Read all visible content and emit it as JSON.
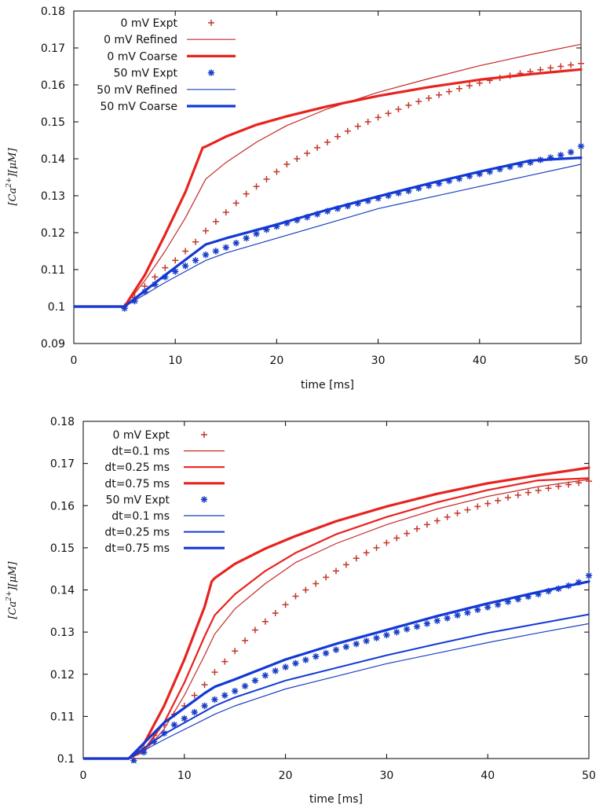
{
  "chart_data": [
    {
      "type": "line",
      "title": "",
      "xlabel": "time [ms]",
      "ylabel": "[Ca2+][μM]",
      "ylabel_main": "[Ca",
      "ylabel_sup": "2+",
      "ylabel_tail": "][μM]",
      "xlim": [
        0,
        50
      ],
      "ylim": [
        0.09,
        0.18
      ],
      "xticks": [
        "0",
        "10",
        "20",
        "30",
        "40",
        "50"
      ],
      "yticks": [
        "0.09",
        "0.1",
        "0.11",
        "0.12",
        "0.13",
        "0.14",
        "0.15",
        "0.16",
        "0.17",
        "0.18"
      ],
      "legend_position": "top-left",
      "series": [
        {
          "name": "0 mV Expt",
          "style": "plus",
          "color": "#c0392b",
          "x": [
            5,
            6,
            7,
            8,
            9,
            10,
            11,
            12,
            13,
            14,
            15,
            16,
            17,
            18,
            19,
            20,
            21,
            22,
            23,
            24,
            25,
            26,
            27,
            28,
            29,
            30,
            31,
            32,
            33,
            34,
            35,
            36,
            37,
            38,
            39,
            40,
            41,
            42,
            43,
            44,
            45,
            46,
            47,
            48,
            49,
            50
          ],
          "y": [
            0.1,
            0.1025,
            0.1055,
            0.108,
            0.1105,
            0.1125,
            0.115,
            0.1175,
            0.1205,
            0.123,
            0.1255,
            0.128,
            0.1305,
            0.1325,
            0.1345,
            0.1365,
            0.1385,
            0.14,
            0.1415,
            0.143,
            0.1445,
            0.146,
            0.1475,
            0.1488,
            0.15,
            0.1512,
            0.1523,
            0.1534,
            0.1545,
            0.1555,
            0.1564,
            0.1573,
            0.1582,
            0.159,
            0.1598,
            0.1605,
            0.1612,
            0.1619,
            0.1625,
            0.1631,
            0.1636,
            0.1641,
            0.1646,
            0.165,
            0.1654,
            0.1658
          ]
        },
        {
          "name": "0 mV Refined",
          "style": "line",
          "color": "#c62828",
          "width": 1.2,
          "x": [
            0,
            5,
            7,
            9,
            11,
            13,
            15,
            18,
            21,
            25,
            30,
            35,
            40,
            45,
            50
          ],
          "y": [
            0.1,
            0.1,
            0.107,
            0.115,
            0.124,
            0.1345,
            0.139,
            0.1445,
            0.149,
            0.1535,
            0.158,
            0.1617,
            0.1652,
            0.1682,
            0.171
          ]
        },
        {
          "name": "0 mV Coarse",
          "style": "line",
          "color": "#e8231e",
          "width": 3.2,
          "x": [
            0,
            5,
            7,
            9,
            11,
            12.7,
            13,
            15,
            18,
            21,
            25,
            30,
            35,
            40,
            45,
            50
          ],
          "y": [
            0.1,
            0.1,
            0.1085,
            0.1195,
            0.131,
            0.143,
            0.1433,
            0.146,
            0.1492,
            0.1515,
            0.1542,
            0.157,
            0.1594,
            0.1614,
            0.1629,
            0.1642
          ]
        },
        {
          "name": "50 mV Expt",
          "style": "star",
          "color": "#1a3fc4",
          "x": [
            5,
            6,
            7,
            8,
            9,
            10,
            11,
            12,
            13,
            14,
            15,
            16,
            17,
            18,
            19,
            20,
            21,
            22,
            23,
            24,
            25,
            26,
            27,
            28,
            29,
            30,
            31,
            32,
            33,
            34,
            35,
            36,
            37,
            38,
            39,
            40,
            41,
            42,
            43,
            44,
            45,
            46,
            47,
            48,
            49,
            50
          ],
          "y": [
            0.0995,
            0.1015,
            0.104,
            0.106,
            0.108,
            0.1095,
            0.111,
            0.1125,
            0.114,
            0.115,
            0.116,
            0.1172,
            0.1185,
            0.1197,
            0.1208,
            0.1217,
            0.1226,
            0.1234,
            0.1242,
            0.125,
            0.1258,
            0.1265,
            0.1272,
            0.1279,
            0.1286,
            0.1293,
            0.13,
            0.1307,
            0.1313,
            0.132,
            0.1327,
            0.1333,
            0.134,
            0.1346,
            0.1353,
            0.1359,
            0.1365,
            0.1372,
            0.1378,
            0.1384,
            0.139,
            0.1397,
            0.1403,
            0.141,
            0.1418,
            0.1434
          ]
        },
        {
          "name": "50 mV Refined",
          "style": "line",
          "color": "#1a3fc4",
          "width": 1.2,
          "x": [
            0,
            5,
            9,
            13,
            15,
            20,
            25,
            30,
            35,
            40,
            45,
            50
          ],
          "y": [
            0.1,
            0.1,
            0.1065,
            0.1125,
            0.1145,
            0.1185,
            0.1225,
            0.1265,
            0.1295,
            0.1325,
            0.1355,
            0.1385
          ]
        },
        {
          "name": "50 mV Coarse",
          "style": "line",
          "color": "#1239d6",
          "width": 3.2,
          "x": [
            0,
            5,
            9,
            13,
            15,
            20,
            25,
            30,
            35,
            40,
            45,
            50
          ],
          "y": [
            0.1,
            0.1,
            0.1085,
            0.1168,
            0.1185,
            0.1222,
            0.1262,
            0.1298,
            0.1333,
            0.1365,
            0.1395,
            0.1403
          ]
        }
      ]
    },
    {
      "type": "line",
      "title": "",
      "xlabel": "time [ms]",
      "ylabel": "[Ca2+][μM]",
      "ylabel_main": "[Ca",
      "ylabel_sup": "2+",
      "ylabel_tail": "][μM]",
      "xlim": [
        0,
        50
      ],
      "ylim": [
        0.1,
        0.18
      ],
      "xticks": [
        "0",
        "10",
        "20",
        "30",
        "40",
        "50"
      ],
      "yticks": [
        "0.1",
        "0.11",
        "0.12",
        "0.13",
        "0.14",
        "0.15",
        "0.16",
        "0.17",
        "0.18"
      ],
      "legend_position": "top-left",
      "series": [
        {
          "name": "0 mV Expt",
          "style": "plus",
          "color": "#c0392b",
          "x": [
            5,
            6,
            7,
            8,
            9,
            10,
            11,
            12,
            13,
            14,
            15,
            16,
            17,
            18,
            19,
            20,
            21,
            22,
            23,
            24,
            25,
            26,
            27,
            28,
            29,
            30,
            31,
            32,
            33,
            34,
            35,
            36,
            37,
            38,
            39,
            40,
            41,
            42,
            43,
            44,
            45,
            46,
            47,
            48,
            49,
            50
          ],
          "y": [
            0.1,
            0.1025,
            0.1055,
            0.108,
            0.1105,
            0.1125,
            0.115,
            0.1175,
            0.1205,
            0.123,
            0.1255,
            0.128,
            0.1305,
            0.1325,
            0.1345,
            0.1365,
            0.1385,
            0.14,
            0.1415,
            0.143,
            0.1445,
            0.146,
            0.1475,
            0.1488,
            0.15,
            0.1512,
            0.1523,
            0.1534,
            0.1545,
            0.1555,
            0.1564,
            0.1573,
            0.1582,
            0.159,
            0.1598,
            0.1605,
            0.1612,
            0.1619,
            0.1625,
            0.1631,
            0.1636,
            0.1641,
            0.1646,
            0.165,
            0.1654,
            0.1658
          ]
        },
        {
          "name": "dt=0.1 ms",
          "style": "line",
          "color": "#c62828",
          "width": 1.2,
          "x": [
            0,
            4.5,
            6,
            8,
            10,
            12,
            13,
            15,
            18,
            21,
            25,
            30,
            35,
            40,
            45,
            50
          ],
          "y": [
            0.1,
            0.1,
            0.1015,
            0.107,
            0.115,
            0.1245,
            0.1295,
            0.1355,
            0.1415,
            0.1465,
            0.151,
            0.1555,
            0.1592,
            0.1622,
            0.1645,
            0.1662
          ]
        },
        {
          "name": "dt=0.25 ms",
          "style": "line",
          "color": "#e8231e",
          "width": 2.2,
          "x": [
            0,
            4.5,
            6,
            8,
            10,
            12,
            13,
            15,
            18,
            21,
            25,
            30,
            35,
            40,
            45,
            50
          ],
          "y": [
            0.1,
            0.1,
            0.102,
            0.1085,
            0.118,
            0.129,
            0.134,
            0.139,
            0.1445,
            0.1488,
            0.1532,
            0.1573,
            0.1608,
            0.1637,
            0.166,
            0.1665
          ]
        },
        {
          "name": "dt=0.75 ms",
          "style": "line",
          "color": "#e8231e",
          "width": 3.2,
          "x": [
            0,
            4.5,
            6,
            8,
            10,
            12,
            12.7,
            13,
            15,
            18,
            21,
            25,
            30,
            35,
            40,
            45,
            50
          ],
          "y": [
            0.1,
            0.1,
            0.1035,
            0.1125,
            0.1235,
            0.136,
            0.142,
            0.1428,
            0.1462,
            0.1498,
            0.1528,
            0.1563,
            0.1598,
            0.1628,
            0.1653,
            0.1672,
            0.169
          ]
        },
        {
          "name": "50 mV Expt",
          "style": "star",
          "color": "#1a3fc4",
          "x": [
            5,
            6,
            7,
            8,
            9,
            10,
            11,
            12,
            13,
            14,
            15,
            16,
            17,
            18,
            19,
            20,
            21,
            22,
            23,
            24,
            25,
            26,
            27,
            28,
            29,
            30,
            31,
            32,
            33,
            34,
            35,
            36,
            37,
            38,
            39,
            40,
            41,
            42,
            43,
            44,
            45,
            46,
            47,
            48,
            49,
            50
          ],
          "y": [
            0.0995,
            0.1015,
            0.104,
            0.106,
            0.108,
            0.1095,
            0.111,
            0.1125,
            0.114,
            0.115,
            0.116,
            0.1172,
            0.1185,
            0.1197,
            0.1208,
            0.1217,
            0.1226,
            0.1234,
            0.1242,
            0.125,
            0.1258,
            0.1265,
            0.1272,
            0.1279,
            0.1286,
            0.1293,
            0.13,
            0.1307,
            0.1313,
            0.132,
            0.1327,
            0.1333,
            0.134,
            0.1346,
            0.1353,
            0.1359,
            0.1365,
            0.1372,
            0.1378,
            0.1384,
            0.139,
            0.1397,
            0.1403,
            0.141,
            0.1418,
            0.1434
          ]
        },
        {
          "name": "dt=0.1 ms",
          "style": "line",
          "color": "#1a3fc4",
          "width": 1.2,
          "x": [
            0,
            4.5,
            8,
            13,
            15,
            20,
            25,
            30,
            35,
            40,
            45,
            50
          ],
          "y": [
            0.1,
            0.1,
            0.1045,
            0.1105,
            0.1125,
            0.1165,
            0.1195,
            0.1225,
            0.125,
            0.1275,
            0.1298,
            0.132
          ]
        },
        {
          "name": "dt=0.25 ms",
          "style": "line",
          "color": "#1239d6",
          "width": 2.0,
          "x": [
            0,
            4.5,
            8,
            13,
            15,
            20,
            25,
            30,
            35,
            40,
            45,
            50
          ],
          "y": [
            0.1,
            0.1,
            0.1058,
            0.1125,
            0.1145,
            0.1185,
            0.1215,
            0.1245,
            0.1272,
            0.1298,
            0.132,
            0.1342
          ]
        },
        {
          "name": "dt=0.75 ms",
          "style": "line",
          "color": "#1239d6",
          "width": 3.2,
          "x": [
            0,
            4.5,
            8,
            12,
            13,
            15,
            20,
            25,
            30,
            35,
            40,
            45,
            50
          ],
          "y": [
            0.1,
            0.1,
            0.1085,
            0.1155,
            0.117,
            0.1188,
            0.1235,
            0.1272,
            0.1305,
            0.1338,
            0.1368,
            0.1395,
            0.142
          ]
        }
      ]
    }
  ]
}
